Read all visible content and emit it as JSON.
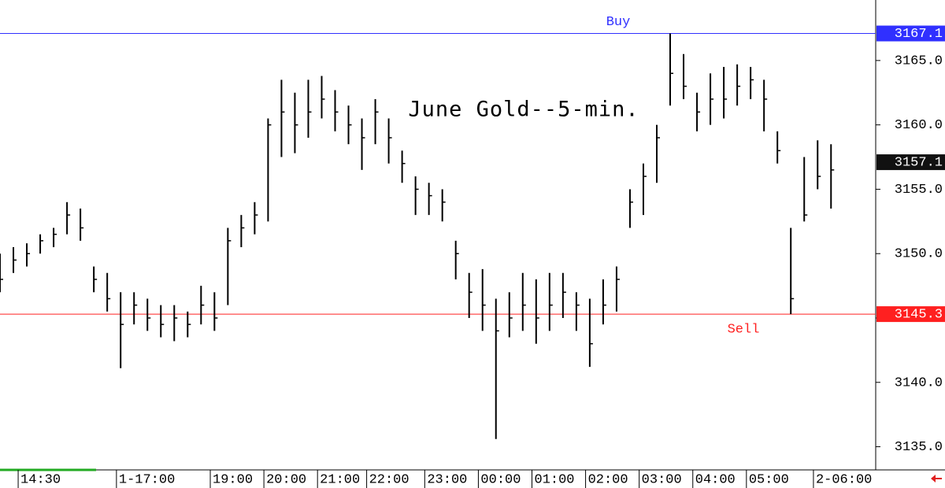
{
  "chart_data": {
    "type": "ohlc",
    "title": "June Gold--5-min.",
    "x": [
      0,
      3,
      6,
      9,
      12,
      15,
      18,
      21,
      24,
      27,
      30,
      33,
      36,
      39,
      42,
      45,
      48,
      51,
      54,
      57,
      60,
      63,
      66,
      69,
      72,
      75,
      78,
      81,
      84,
      87,
      90,
      93,
      96,
      99,
      102,
      105,
      108,
      111,
      114,
      117,
      120,
      123,
      126,
      129,
      132,
      135,
      138,
      141,
      144,
      147,
      150,
      153,
      156,
      159,
      162,
      165,
      168,
      171,
      174,
      177,
      180,
      183,
      186
    ],
    "high": [
      3150,
      3150.5,
      3150.8,
      3151.5,
      3152,
      3154,
      3153.5,
      3149,
      3148.5,
      3147,
      3147,
      3146.5,
      3146,
      3146,
      3145.5,
      3147.5,
      3147,
      3152,
      3153,
      3154,
      3160.5,
      3163.5,
      3162.5,
      3163.5,
      3163.8,
      3162.7,
      3161.5,
      3160.5,
      3162,
      3160.5,
      3158,
      3156,
      3155.5,
      3155,
      3151,
      3148.5,
      3148.8,
      3146.5,
      3147,
      3148.5,
      3148,
      3148.5,
      3148.5,
      3147,
      3146.5,
      3148,
      3149,
      3155,
      3157,
      3160,
      3167.1,
      3165.5,
      3162.5,
      3164,
      3164.5,
      3164.7,
      3164.5,
      3163.5,
      3159.5,
      3152,
      3157.5,
      3158.8,
      3158.5
    ],
    "low": [
      3147,
      3148.5,
      3149,
      3150,
      3150.5,
      3151.5,
      3151,
      3147,
      3145.5,
      3141.1,
      3144.5,
      3144,
      3143.5,
      3143.2,
      3143.5,
      3144.5,
      3144,
      3146,
      3150.5,
      3151.5,
      3152.5,
      3157.5,
      3157.8,
      3159,
      3160.5,
      3159.5,
      3158.5,
      3156.5,
      3158.5,
      3157,
      3155.5,
      3153,
      3153,
      3152.5,
      3148,
      3145,
      3144,
      3135.6,
      3143.5,
      3144,
      3143,
      3144,
      3145,
      3144,
      3141.2,
      3144.5,
      3145.5,
      3152,
      3153,
      3155.5,
      3161.5,
      3162,
      3159.5,
      3160,
      3160.5,
      3161.5,
      3162,
      3159.5,
      3157,
      3145.3,
      3152.5,
      3155,
      3153.5
    ],
    "close": [
      3148,
      3149.5,
      3150,
      3151,
      3151.5,
      3153,
      3152,
      3148,
      3146.5,
      3144.5,
      3146,
      3145,
      3144.5,
      3145,
      3144.5,
      3146,
      3145,
      3151,
      3152,
      3153,
      3160,
      3161,
      3160,
      3161,
      3162,
      3161,
      3160,
      3159,
      3161,
      3159,
      3157,
      3155,
      3154.5,
      3154,
      3150,
      3147,
      3146,
      3144,
      3145,
      3146,
      3145,
      3146,
      3147,
      3146,
      3143,
      3146,
      3148,
      3154,
      3156,
      3159,
      3164,
      3163,
      3161,
      3162,
      3162,
      3163,
      3163.5,
      3162,
      3158,
      3146.5,
      3153,
      3156,
      3156.5
    ],
    "color": "#000000",
    "xlim": [
      0,
      196
    ],
    "xticks": [
      {
        "value": 9,
        "label": "14:30"
      },
      {
        "value": 31,
        "label": "1-17:00"
      },
      {
        "value": 52,
        "label": "19:00"
      },
      {
        "value": 64,
        "label": "20:00"
      },
      {
        "value": 76,
        "label": "21:00"
      },
      {
        "value": 87,
        "label": "22:00"
      },
      {
        "value": 100,
        "label": "23:00"
      },
      {
        "value": 112,
        "label": "00:00"
      },
      {
        "value": 124,
        "label": "01:00"
      },
      {
        "value": 136,
        "label": "02:00"
      },
      {
        "value": 148,
        "label": "03:00"
      },
      {
        "value": 160,
        "label": "04:00"
      },
      {
        "value": 172,
        "label": "05:00"
      },
      {
        "value": 187,
        "label": "2-06:00"
      }
    ],
    "ylim": [
      3133.2,
      3169.7
    ],
    "yticks": [
      {
        "value": 3135,
        "label": "3135.0"
      },
      {
        "value": 3140,
        "label": "3140.0"
      },
      {
        "value": 3145,
        "label": "3145.0"
      },
      {
        "value": 3150,
        "label": "3150.0"
      },
      {
        "value": 3155,
        "label": "3155.0"
      },
      {
        "value": 3160,
        "label": "3160.0"
      },
      {
        "value": 3165,
        "label": "3165.0"
      }
    ],
    "levels": [
      {
        "label": "Buy",
        "value": 3167.1,
        "color": "#3030ff"
      },
      {
        "label": "Sell",
        "value": 3145.3,
        "color": "#ff2020"
      }
    ],
    "last_price": 3157.1
  }
}
